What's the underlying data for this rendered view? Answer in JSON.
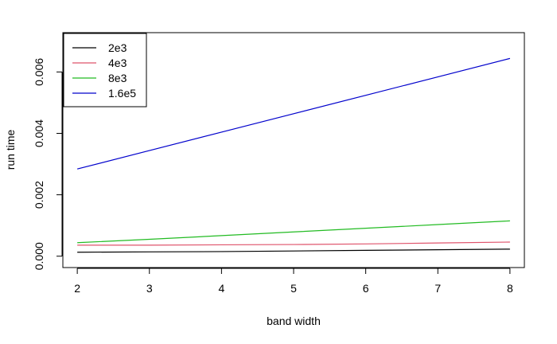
{
  "chart_data": {
    "type": "line",
    "title": "",
    "xlabel": "band width",
    "ylabel": "run time",
    "xlim": [
      1.8,
      8.2
    ],
    "ylim": [
      -0.00037,
      0.00728
    ],
    "x_ticks": [
      2,
      3,
      4,
      5,
      6,
      7,
      8
    ],
    "y_ticks": [
      0.0,
      0.002,
      0.004,
      0.006
    ],
    "y_tick_labels": [
      "0.000",
      "0.002",
      "0.004",
      "0.006"
    ],
    "grid": false,
    "legend_position": "top-left",
    "series": [
      {
        "name": "2e3",
        "color": "#000000",
        "x": [
          2,
          3,
          4,
          5,
          6,
          7,
          8
        ],
        "values": [
          0.00013,
          0.00014,
          0.00015,
          0.00017,
          0.00019,
          0.00021,
          0.00023
        ]
      },
      {
        "name": "4e3",
        "color": "#DF536B",
        "x": [
          2,
          3,
          4,
          5,
          6,
          7,
          8
        ],
        "values": [
          0.00036,
          0.00036,
          0.00037,
          0.00038,
          0.0004,
          0.00043,
          0.00046
        ]
      },
      {
        "name": "8e3",
        "color": "#22BB22",
        "x": [
          2,
          3,
          4,
          5,
          6,
          7,
          8
        ],
        "values": [
          0.00044,
          0.00055,
          0.00067,
          0.00079,
          0.00091,
          0.00103,
          0.00115
        ]
      },
      {
        "name": "1.6e5",
        "color": "#0000CC",
        "x": [
          2,
          3,
          4,
          5,
          6,
          7,
          8
        ],
        "values": [
          0.00284,
          0.00344,
          0.00404,
          0.00464,
          0.00524,
          0.00584,
          0.00644
        ]
      }
    ]
  }
}
